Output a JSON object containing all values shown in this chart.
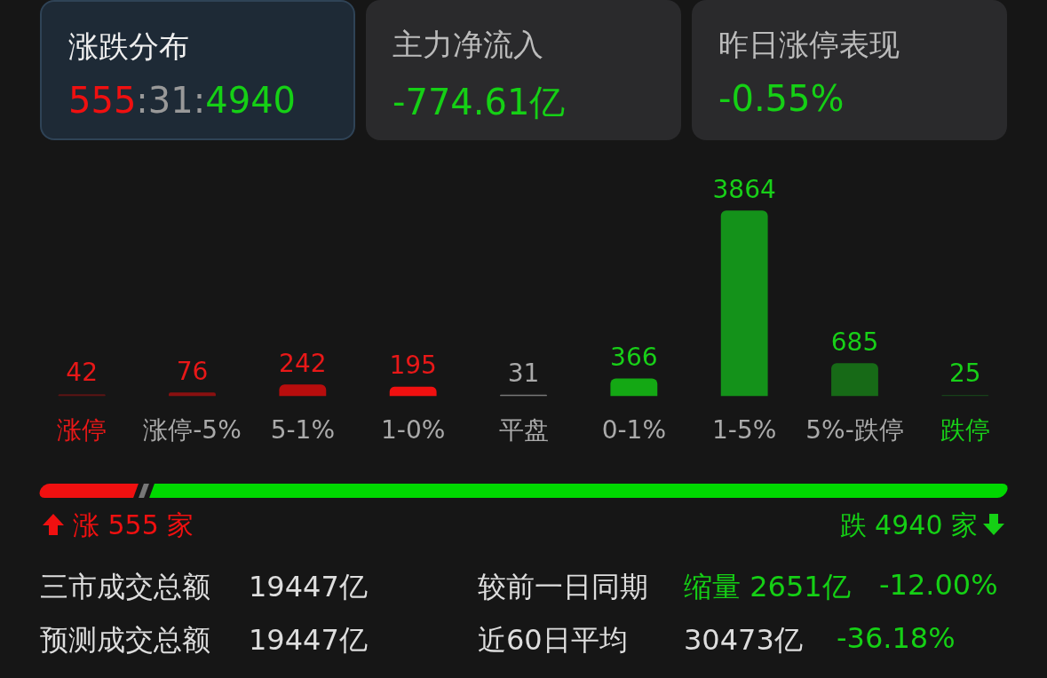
{
  "chart_data": {
    "type": "bar",
    "categories": [
      "涨停",
      "涨停-5%",
      "5-1%",
      "1-0%",
      "平盘",
      "0-1%",
      "1-5%",
      "5%-跌停",
      "跌停"
    ],
    "values": [
      42,
      76,
      242,
      195,
      31,
      366,
      3864,
      685,
      25
    ],
    "colors": [
      "#5c1414",
      "#8a1010",
      "#b80d0d",
      "#f01010",
      "#777777",
      "#14a814",
      "#14921a",
      "#176a17",
      "#17401a"
    ],
    "data_labels": true,
    "annotations": [
      "涨跌分布",
      "555:31:4940",
      "主力净流入",
      "-774.61亿",
      "昨日涨停表现",
      "-0.55%",
      "涨 555 家",
      "跌 4940 家",
      "三市成交总额",
      "19447亿",
      "预测成交总额",
      "19447亿",
      "较前一日同期",
      "缩量 2651亿",
      "-12.00%",
      "近60日平均",
      "30473亿",
      "-36.18%"
    ]
  }
}
